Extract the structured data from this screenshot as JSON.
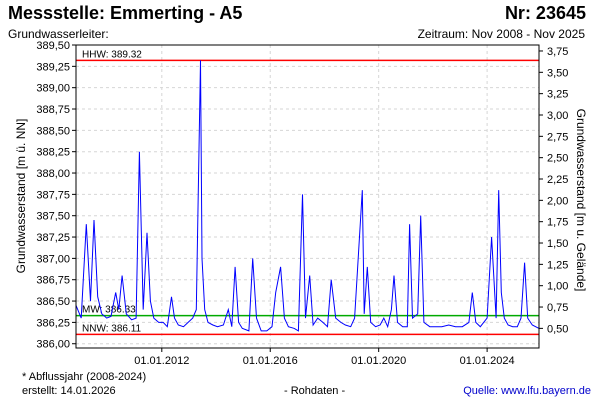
{
  "header": {
    "title": "Messstelle: Emmerting - A5",
    "number": "Nr: 23645",
    "aquifer_label": "Grundwasserleiter:",
    "period": "Zeitraum: Nov 2008 - Nov 2025"
  },
  "footer": {
    "note": "* Abflussjahr (2008-2024)",
    "created": "erstellt:  14.01.2026",
    "raw": "- Rohdaten -",
    "source": "Quelle: www.lfu.bayern.de"
  },
  "chart_data": {
    "type": "line",
    "title": "",
    "xlabel": "",
    "ylabel": "Grundwasserstand [m ü. NN]",
    "ylabel_right": "Grundwasserstand [m u. Gelände]",
    "xlim": [
      "2008-11-01",
      "2025-11-30"
    ],
    "ylim": [
      385.95,
      389.5
    ],
    "ylim_right": [
      3.82,
      0.27
    ],
    "x_ticks": [
      "01.01.2012",
      "01.01.2016",
      "01.01.2020",
      "01.01.2024"
    ],
    "y_ticks": [
      "389,50",
      "389,25",
      "389,00",
      "388,75",
      "388,50",
      "388,25",
      "388,00",
      "387,75",
      "387,50",
      "387,25",
      "387,00",
      "386,75",
      "386,50",
      "386,25",
      "386,00"
    ],
    "y_ticks_right": [
      "0,50",
      "0,75",
      "1,00",
      "1,25",
      "1,50",
      "1,75",
      "2,00",
      "2,25",
      "2,50",
      "2,75",
      "3,00",
      "3,25",
      "3,50",
      "3,75"
    ],
    "grid": true,
    "reference_lines": [
      {
        "label": "HHW: 389.32",
        "value": 389.32,
        "color": "#ff0000"
      },
      {
        "label": "MW: 386.33",
        "value": 386.33,
        "color": "#00aa00"
      },
      {
        "label": "NNW: 386.11",
        "value": 386.11,
        "color": "#ff0000"
      }
    ],
    "series": [
      {
        "color": "#0000ff",
        "points": [
          [
            "2008-11-01",
            386.45
          ],
          [
            "2009-01-10",
            386.3
          ],
          [
            "2009-03-20",
            387.4
          ],
          [
            "2009-05-15",
            386.5
          ],
          [
            "2009-07-01",
            387.45
          ],
          [
            "2009-08-20",
            386.55
          ],
          [
            "2009-10-15",
            386.35
          ],
          [
            "2009-12-20",
            386.3
          ],
          [
            "2010-02-15",
            386.32
          ],
          [
            "2010-04-20",
            386.6
          ],
          [
            "2010-06-01",
            386.4
          ],
          [
            "2010-07-15",
            386.8
          ],
          [
            "2010-09-10",
            386.35
          ],
          [
            "2010-11-20",
            386.28
          ],
          [
            "2011-01-20",
            386.3
          ],
          [
            "2011-03-05",
            388.25
          ],
          [
            "2011-04-25",
            386.4
          ],
          [
            "2011-06-15",
            387.3
          ],
          [
            "2011-08-01",
            386.5
          ],
          [
            "2011-09-15",
            386.3
          ],
          [
            "2011-11-20",
            386.25
          ],
          [
            "2012-01-20",
            386.25
          ],
          [
            "2012-03-15",
            386.2
          ],
          [
            "2012-05-10",
            386.55
          ],
          [
            "2012-06-20",
            386.3
          ],
          [
            "2012-08-10",
            386.22
          ],
          [
            "2012-10-20",
            386.2
          ],
          [
            "2012-12-20",
            386.25
          ],
          [
            "2013-02-20",
            386.3
          ],
          [
            "2013-04-10",
            386.4
          ],
          [
            "2013-06-05",
            389.32
          ],
          [
            "2013-06-25",
            387.0
          ],
          [
            "2013-08-01",
            386.4
          ],
          [
            "2013-09-15",
            386.25
          ],
          [
            "2013-11-20",
            386.22
          ],
          [
            "2014-01-20",
            386.2
          ],
          [
            "2014-04-10",
            386.22
          ],
          [
            "2014-06-15",
            386.4
          ],
          [
            "2014-08-01",
            386.2
          ],
          [
            "2014-09-15",
            386.9
          ],
          [
            "2014-11-01",
            386.25
          ],
          [
            "2014-12-20",
            386.18
          ],
          [
            "2015-03-20",
            386.15
          ],
          [
            "2015-05-10",
            387.0
          ],
          [
            "2015-06-30",
            386.3
          ],
          [
            "2015-09-01",
            386.15
          ],
          [
            "2015-11-15",
            386.15
          ],
          [
            "2016-01-25",
            386.2
          ],
          [
            "2016-03-15",
            386.6
          ],
          [
            "2016-05-20",
            386.9
          ],
          [
            "2016-07-10",
            386.3
          ],
          [
            "2016-09-01",
            386.2
          ],
          [
            "2016-11-20",
            386.18
          ],
          [
            "2017-01-15",
            386.15
          ],
          [
            "2017-03-10",
            387.75
          ],
          [
            "2017-04-20",
            386.3
          ],
          [
            "2017-06-15",
            386.8
          ],
          [
            "2017-08-01",
            386.22
          ],
          [
            "2017-10-01",
            386.3
          ],
          [
            "2017-12-10",
            386.25
          ],
          [
            "2018-02-10",
            386.2
          ],
          [
            "2018-04-01",
            386.75
          ],
          [
            "2018-06-01",
            386.3
          ],
          [
            "2018-08-10",
            386.25
          ],
          [
            "2018-10-10",
            386.22
          ],
          [
            "2018-12-20",
            386.2
          ],
          [
            "2019-02-10",
            386.3
          ],
          [
            "2019-05-25",
            387.8
          ],
          [
            "2019-06-20",
            386.35
          ],
          [
            "2019-08-01",
            386.9
          ],
          [
            "2019-09-15",
            386.25
          ],
          [
            "2019-11-20",
            386.2
          ],
          [
            "2020-01-20",
            386.22
          ],
          [
            "2020-03-10",
            386.3
          ],
          [
            "2020-05-01",
            386.2
          ],
          [
            "2020-06-20",
            386.4
          ],
          [
            "2020-07-25",
            386.8
          ],
          [
            "2020-09-10",
            386.25
          ],
          [
            "2020-11-20",
            386.2
          ],
          [
            "2021-01-20",
            386.2
          ],
          [
            "2021-02-20",
            387.4
          ],
          [
            "2021-04-01",
            386.3
          ],
          [
            "2021-06-10",
            386.35
          ],
          [
            "2021-07-20",
            387.5
          ],
          [
            "2021-09-01",
            386.25
          ],
          [
            "2021-11-20",
            386.2
          ],
          [
            "2022-02-10",
            386.2
          ],
          [
            "2022-05-01",
            386.2
          ],
          [
            "2022-08-01",
            386.22
          ],
          [
            "2022-11-01",
            386.2
          ],
          [
            "2023-02-01",
            386.2
          ],
          [
            "2023-05-01",
            386.25
          ],
          [
            "2023-06-15",
            386.6
          ],
          [
            "2023-08-01",
            386.25
          ],
          [
            "2023-10-01",
            386.2
          ],
          [
            "2024-01-01",
            386.3
          ],
          [
            "2024-03-01",
            387.25
          ],
          [
            "2024-05-01",
            386.3
          ],
          [
            "2024-06-05",
            387.8
          ],
          [
            "2024-07-10",
            386.6
          ],
          [
            "2024-08-20",
            386.3
          ],
          [
            "2024-10-10",
            386.22
          ],
          [
            "2024-12-10",
            386.2
          ],
          [
            "2025-02-10",
            386.2
          ],
          [
            "2025-04-01",
            386.3
          ],
          [
            "2025-05-20",
            386.95
          ],
          [
            "2025-07-01",
            386.3
          ],
          [
            "2025-09-01",
            386.22
          ],
          [
            "2025-11-30",
            386.18
          ]
        ]
      }
    ]
  }
}
